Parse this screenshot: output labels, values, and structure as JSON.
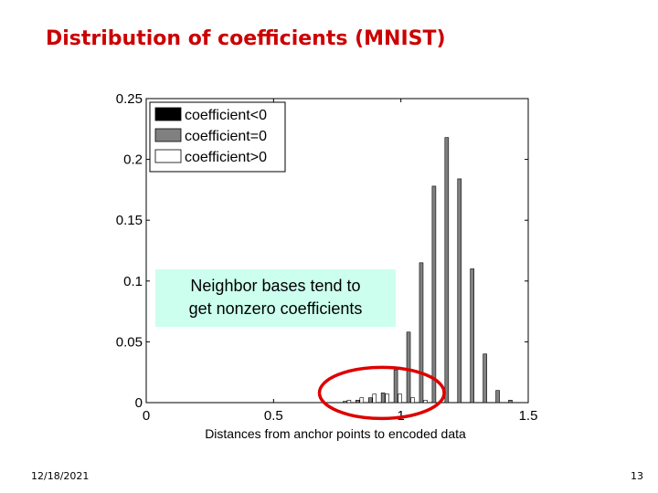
{
  "slide": {
    "title": "Distribution of coefficients (MNIST)",
    "date": "12/18/2021",
    "page": "13"
  },
  "chart_data": {
    "type": "bar",
    "title": "",
    "xlabel": "Distances from anchor points to encoded data",
    "ylabel": "",
    "xlim": [
      0,
      1.5
    ],
    "ylim": [
      0,
      0.25
    ],
    "xticks": [
      "0",
      "0.5",
      "1",
      "1.5"
    ],
    "yticks": [
      "0",
      "0.05",
      "0.1",
      "0.15",
      "0.2",
      "0.25"
    ],
    "grid": false,
    "legend_position": "top-left",
    "x": [
      0.78,
      0.83,
      0.88,
      0.93,
      0.98,
      1.03,
      1.08,
      1.13,
      1.18,
      1.23,
      1.28,
      1.33,
      1.38,
      1.43
    ],
    "series": [
      {
        "name": "coefficient<0",
        "color": "#000000",
        "values": [
          0,
          0,
          0,
          0,
          0,
          0,
          0,
          0,
          0,
          0,
          0,
          0,
          0,
          0
        ]
      },
      {
        "name": "coefficient=0",
        "color": "#808080",
        "values": [
          0.001,
          0.002,
          0.004,
          0.008,
          0.027,
          0.058,
          0.115,
          0.178,
          0.218,
          0.184,
          0.11,
          0.04,
          0.01,
          0.002
        ]
      },
      {
        "name": "coefficient>0",
        "color": "#ffffff",
        "values": [
          0.002,
          0.004,
          0.007,
          0.007,
          0.007,
          0.004,
          0.002,
          0,
          0,
          0,
          0,
          0,
          0,
          0
        ]
      }
    ],
    "annotations": [
      {
        "text_lines": [
          "Neighbor bases tend to",
          "get nonzero coefficients"
        ],
        "background": "#ccffee"
      }
    ],
    "highlight": {
      "shape": "ellipse",
      "color": "#dd0000",
      "x_range": [
        0.68,
        1.17
      ],
      "y_range": [
        0,
        0.016
      ]
    }
  }
}
